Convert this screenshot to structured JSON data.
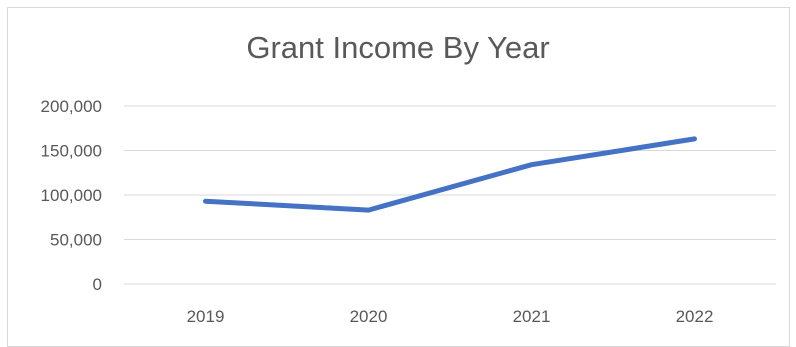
{
  "chart_data": {
    "type": "line",
    "title": "Grant Income By Year",
    "xlabel": "",
    "ylabel": "",
    "categories": [
      "2019",
      "2020",
      "2021",
      "2022"
    ],
    "series": [
      {
        "values": [
          93000,
          83000,
          134000,
          163000
        ]
      }
    ],
    "ylim": [
      0,
      200000
    ],
    "yticks": [
      "0",
      "50,000",
      "100,000",
      "150,000",
      "200,000"
    ],
    "ytick_values": [
      0,
      50000,
      100000,
      150000,
      200000
    ],
    "grid": true,
    "legend": "none",
    "colors": {
      "line": "#4472c4",
      "grid": "#d9d9d9",
      "text": "#595959"
    }
  }
}
